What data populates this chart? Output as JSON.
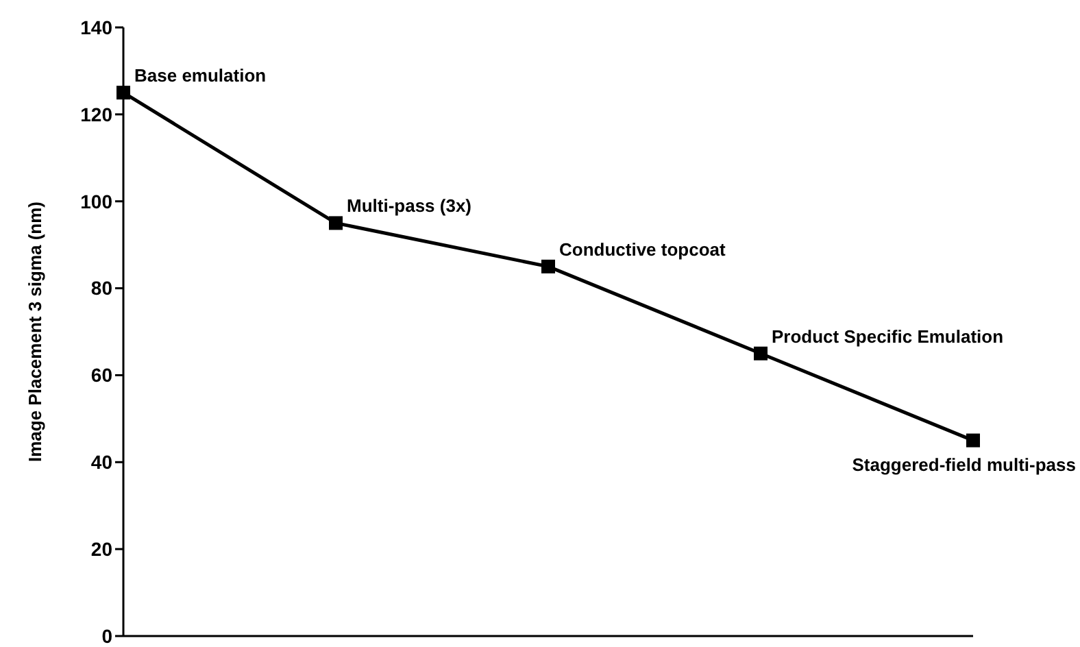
{
  "chart_data": {
    "type": "line",
    "ylabel": "Image Placement 3 sigma (nm)",
    "categories": [
      null,
      null,
      null,
      null,
      null
    ],
    "series": [
      {
        "color": "#000000",
        "values": [
          125,
          95,
          85,
          65,
          45
        ]
      }
    ],
    "ylim": [
      0,
      140
    ],
    "yticks": [
      0,
      20,
      40,
      60,
      80,
      100,
      120,
      140
    ],
    "marker": "square",
    "line_style": "solid",
    "grid": false,
    "annotations": [
      "Base emulation",
      "Multi-pass (3x)",
      "Conductive topcoat",
      "Product Specific Emulation",
      "Staggered-field multi-pass"
    ]
  }
}
